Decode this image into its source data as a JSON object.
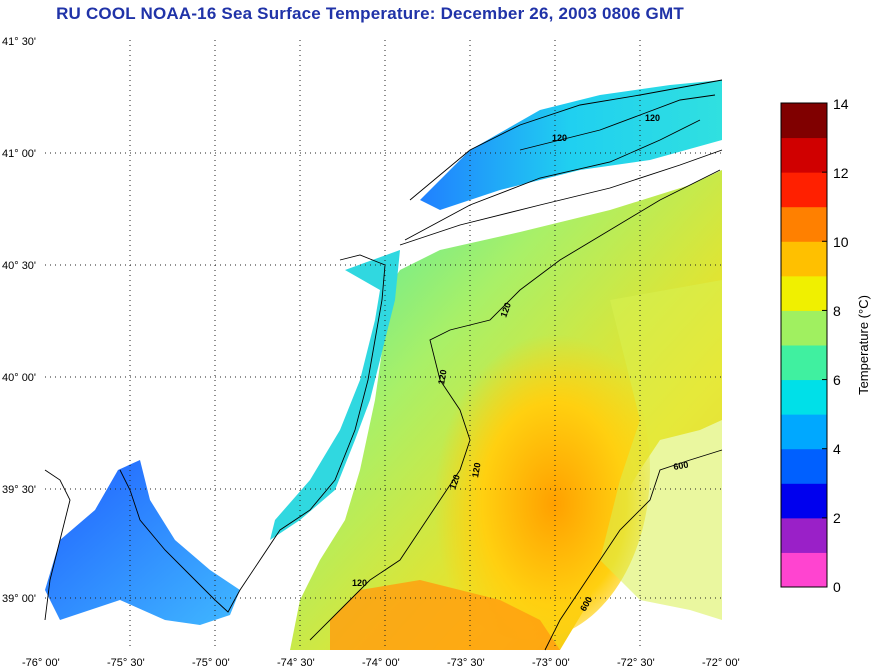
{
  "title": "RU COOL  NOAA-16  Sea Surface Temperature:  December 26, 2003 0806 GMT",
  "lat_labels": [
    "41° 30'",
    "41° 00'",
    "40° 30'",
    "40° 00'",
    "39° 30'",
    "39° 00'"
  ],
  "lon_labels": [
    "-76° 00'",
    "-75° 30'",
    "-75° 00'",
    "-74° 30'",
    "-74° 00'",
    "-73° 30'",
    "-73° 00'",
    "-72° 30'",
    "-72° 00'"
  ],
  "contour_labels": [
    "120",
    "120",
    "120",
    "120",
    "120",
    "120",
    "120",
    "600",
    "600"
  ],
  "colorbar": {
    "title": "Temperature (°C)",
    "ticks": [
      "0",
      "2",
      "4",
      "6",
      "8",
      "10",
      "12",
      "14"
    ],
    "min": 0,
    "max": 14,
    "colors": [
      "#ff44d0",
      "#9a20c8",
      "#0000ee",
      "#0060ff",
      "#00a8ff",
      "#00e0e8",
      "#40f0a0",
      "#a0f060",
      "#f0f000",
      "#ffc000",
      "#ff8000",
      "#ff2000",
      "#d00000",
      "#800000"
    ]
  }
}
